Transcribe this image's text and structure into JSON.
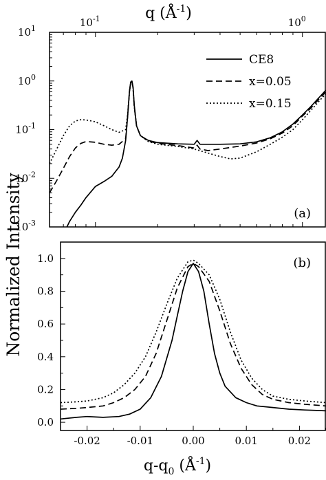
{
  "chart_data": [
    {
      "id": "a",
      "type": "line",
      "panel_label": "(a)",
      "xscale": "log",
      "xlabel": "q (Å⁻¹)",
      "xlabel_base": "q (Å",
      "xlabel_exp": "-1",
      "xlabel_close": ")",
      "xlim": [
        0.06,
        1.3
      ],
      "x_ticks": [
        {
          "value": 0.1,
          "mantissa": "10",
          "exp": "-1"
        },
        {
          "value": 1,
          "mantissa": "10",
          "exp": "0"
        }
      ],
      "ylabel": "Normalized Intensity",
      "yscale": "log",
      "ylim": [
        0.001,
        10
      ],
      "y_ticks": [
        {
          "value": 0.001,
          "mantissa": "10",
          "exp": "-3"
        },
        {
          "value": 0.01,
          "mantissa": "10",
          "exp": "-2"
        },
        {
          "value": 0.1,
          "mantissa": "10",
          "exp": "-1"
        },
        {
          "value": 1,
          "mantissa": "10",
          "exp": "0"
        },
        {
          "value": 10,
          "mantissa": "10",
          "exp": "1"
        }
      ],
      "legend_position": "top-right",
      "series": [
        {
          "name": "CE8",
          "style": "solid",
          "x": [
            0.072,
            0.075,
            0.08,
            0.085,
            0.09,
            0.1,
            0.11,
            0.12,
            0.13,
            0.135,
            0.14,
            0.143,
            0.146,
            0.148,
            0.15,
            0.152,
            0.154,
            0.158,
            0.165,
            0.18,
            0.2,
            0.25,
            0.3,
            0.31,
            0.32,
            0.35,
            0.4,
            0.5,
            0.6,
            0.7,
            0.8,
            0.9,
            1.0,
            1.1,
            1.2,
            1.3
          ],
          "y": [
            0.0009,
            0.0013,
            0.002,
            0.0028,
            0.004,
            0.0068,
            0.0086,
            0.011,
            0.017,
            0.026,
            0.06,
            0.18,
            0.6,
            0.95,
            1.0,
            0.75,
            0.32,
            0.12,
            0.075,
            0.06,
            0.054,
            0.051,
            0.05,
            0.06,
            0.05,
            0.05,
            0.05,
            0.051,
            0.056,
            0.068,
            0.09,
            0.13,
            0.2,
            0.3,
            0.45,
            0.65
          ]
        },
        {
          "name": "x=0.05",
          "style": "dashed",
          "x": [
            0.06,
            0.065,
            0.07,
            0.075,
            0.08,
            0.085,
            0.09,
            0.1,
            0.11,
            0.12,
            0.13,
            0.14,
            0.143,
            0.146,
            0.148,
            0.15,
            0.152,
            0.154,
            0.158,
            0.165,
            0.18,
            0.2,
            0.25,
            0.3,
            0.31,
            0.32,
            0.35,
            0.4,
            0.5,
            0.6,
            0.7,
            0.8,
            0.9,
            1.0,
            1.1,
            1.2,
            1.3
          ],
          "y": [
            0.005,
            0.009,
            0.016,
            0.028,
            0.042,
            0.052,
            0.057,
            0.055,
            0.05,
            0.048,
            0.05,
            0.065,
            0.18,
            0.6,
            0.93,
            0.98,
            0.7,
            0.3,
            0.12,
            0.075,
            0.058,
            0.052,
            0.047,
            0.042,
            0.048,
            0.04,
            0.037,
            0.04,
            0.046,
            0.053,
            0.065,
            0.085,
            0.12,
            0.19,
            0.28,
            0.42,
            0.6
          ]
        },
        {
          "name": "x=0.15",
          "style": "dotted",
          "x": [
            0.06,
            0.065,
            0.07,
            0.075,
            0.08,
            0.085,
            0.09,
            0.1,
            0.11,
            0.12,
            0.13,
            0.14,
            0.143,
            0.146,
            0.148,
            0.15,
            0.152,
            0.154,
            0.158,
            0.165,
            0.18,
            0.2,
            0.25,
            0.3,
            0.35,
            0.4,
            0.45,
            0.5,
            0.6,
            0.7,
            0.8,
            0.9,
            1.0,
            1.1,
            1.2,
            1.3
          ],
          "y": [
            0.02,
            0.04,
            0.075,
            0.12,
            0.15,
            0.16,
            0.158,
            0.145,
            0.12,
            0.1,
            0.088,
            0.1,
            0.2,
            0.6,
            0.92,
            0.97,
            0.7,
            0.3,
            0.12,
            0.075,
            0.057,
            0.05,
            0.045,
            0.04,
            0.033,
            0.028,
            0.025,
            0.026,
            0.035,
            0.05,
            0.07,
            0.1,
            0.16,
            0.25,
            0.38,
            0.55
          ]
        }
      ]
    },
    {
      "id": "b",
      "type": "line",
      "panel_label": "(b)",
      "xlabel": "q-q₀ (Å⁻¹)",
      "xlabel_base": "q-q",
      "xlabel_sub": "0",
      "xlabel_paren": " (Å",
      "xlabel_exp": "-1",
      "xlabel_close": ")",
      "xlim": [
        -0.025,
        0.025
      ],
      "x_ticks": [
        {
          "value": -0.02,
          "label": "-0.02"
        },
        {
          "value": -0.01,
          "label": "-0.01"
        },
        {
          "value": 0,
          "label": "0.00"
        },
        {
          "value": 0.01,
          "label": "0.01"
        },
        {
          "value": 0.02,
          "label": "0.02"
        }
      ],
      "ylim": [
        -0.05,
        1.1
      ],
      "y_ticks": [
        {
          "value": 0.0,
          "label": "0.0"
        },
        {
          "value": 0.2,
          "label": "0.2"
        },
        {
          "value": 0.4,
          "label": "0.4"
        },
        {
          "value": 0.6,
          "label": "0.6"
        },
        {
          "value": 0.8,
          "label": "0.8"
        },
        {
          "value": 1.0,
          "label": "1.0"
        }
      ],
      "series": [
        {
          "name": "CE8",
          "style": "solid",
          "x": [
            -0.025,
            -0.022,
            -0.02,
            -0.017,
            -0.014,
            -0.012,
            -0.01,
            -0.008,
            -0.006,
            -0.004,
            -0.003,
            -0.002,
            -0.001,
            0,
            0.001,
            0.002,
            0.003,
            0.004,
            0.005,
            0.006,
            0.008,
            0.01,
            0.012,
            0.015,
            0.018,
            0.021,
            0.025
          ],
          "y": [
            0.02,
            0.03,
            0.035,
            0.03,
            0.035,
            0.05,
            0.08,
            0.15,
            0.28,
            0.5,
            0.65,
            0.8,
            0.92,
            0.97,
            0.92,
            0.8,
            0.6,
            0.42,
            0.3,
            0.22,
            0.15,
            0.12,
            0.1,
            0.09,
            0.08,
            0.075,
            0.07
          ]
        },
        {
          "name": "x=0.05",
          "style": "dashed",
          "x": [
            -0.025,
            -0.022,
            -0.02,
            -0.017,
            -0.015,
            -0.013,
            -0.011,
            -0.009,
            -0.007,
            -0.005,
            -0.003,
            -0.001,
            0,
            0.001,
            0.003,
            0.005,
            0.007,
            0.009,
            0.011,
            0.013,
            0.015,
            0.018,
            0.021,
            0.025
          ],
          "y": [
            0.08,
            0.085,
            0.09,
            0.1,
            0.12,
            0.15,
            0.2,
            0.28,
            0.42,
            0.62,
            0.82,
            0.95,
            0.97,
            0.95,
            0.86,
            0.68,
            0.48,
            0.33,
            0.23,
            0.17,
            0.14,
            0.12,
            0.11,
            0.1
          ]
        },
        {
          "name": "x=0.15",
          "style": "dotted",
          "x": [
            -0.025,
            -0.022,
            -0.02,
            -0.017,
            -0.015,
            -0.013,
            -0.011,
            -0.009,
            -0.007,
            -0.005,
            -0.003,
            -0.001,
            0,
            0.001,
            0.003,
            0.005,
            0.007,
            0.009,
            0.011,
            0.013,
            0.015,
            0.018,
            0.021,
            0.025
          ],
          "y": [
            0.12,
            0.125,
            0.13,
            0.15,
            0.18,
            0.23,
            0.3,
            0.4,
            0.55,
            0.72,
            0.88,
            0.98,
            0.99,
            0.97,
            0.9,
            0.75,
            0.55,
            0.38,
            0.27,
            0.2,
            0.16,
            0.14,
            0.13,
            0.12
          ]
        }
      ]
    }
  ]
}
